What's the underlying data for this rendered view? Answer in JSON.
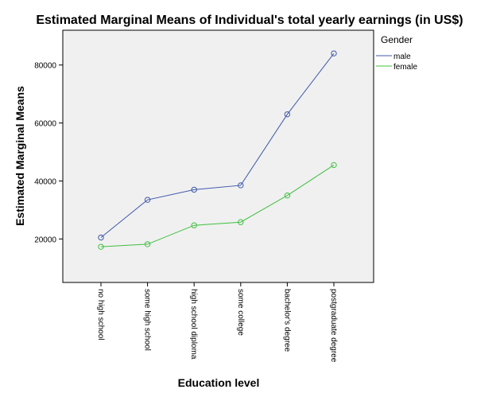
{
  "colors": {
    "plot_bg": "#f0f0f0",
    "male": "#3e58ac",
    "female": "#3fbf3f"
  },
  "chart_data": {
    "type": "line",
    "title": "Estimated Marginal Means of Individual's total yearly earnings (in US$)",
    "xlabel": "Education level",
    "ylabel": "Estimated Marginal Means",
    "categories": [
      "no high school",
      "some high school",
      "high school diploma",
      "some college",
      "bachelor's degree",
      "postgraduate degree"
    ],
    "ylim": [
      5000,
      92000
    ],
    "yticks": [
      20000,
      40000,
      60000,
      80000
    ],
    "grid": false,
    "legend": {
      "title": "Gender",
      "placement": "right"
    },
    "series": [
      {
        "name": "male",
        "values": [
          20500,
          33500,
          37000,
          38500,
          63000,
          84000
        ]
      },
      {
        "name": "female",
        "values": [
          17300,
          18200,
          24700,
          25800,
          35000,
          45500
        ]
      }
    ]
  }
}
